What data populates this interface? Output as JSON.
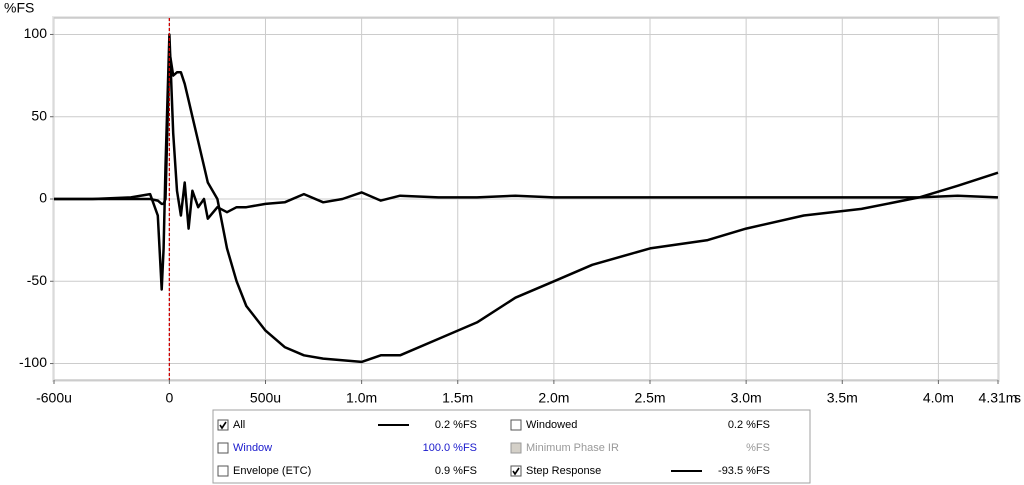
{
  "chart_data": {
    "type": "line",
    "y_label": "%FS",
    "x_unit": "s",
    "x": [
      -0.6,
      -0.4,
      -0.2,
      -0.1,
      -0.06,
      -0.04,
      -0.03,
      -0.02,
      0,
      0.02,
      0.04,
      0.06,
      0.08,
      0.1,
      0.12,
      0.15,
      0.18,
      0.2,
      0.25,
      0.3,
      0.35,
      0.4,
      0.5,
      0.6,
      0.7,
      0.8,
      0.9,
      1.0,
      1.1,
      1.2,
      1.4,
      1.6,
      1.8,
      2.0,
      2.2,
      2.5,
      2.8,
      3.0,
      3.3,
      3.6,
      3.9,
      4.1,
      4.31
    ],
    "series": [
      {
        "color": "#000000",
        "values": [
          0,
          0,
          1,
          3,
          -10,
          -55,
          -30,
          20,
          100,
          40,
          5,
          -10,
          10,
          -18,
          5,
          -5,
          0,
          -12,
          -5,
          -8,
          -5,
          -5,
          -3,
          -2,
          3,
          -2,
          0,
          4,
          -1,
          2,
          1,
          1,
          2,
          1,
          1,
          1,
          1,
          1,
          1,
          1,
          1,
          2,
          1
        ]
      },
      {
        "color": "#000000",
        "values": [
          0,
          0,
          0,
          0,
          -1,
          -3,
          -3,
          0,
          90,
          75,
          77,
          77,
          70,
          60,
          50,
          35,
          20,
          10,
          0,
          -30,
          -50,
          -65,
          -80,
          -90,
          -95,
          -97,
          -98,
          -99,
          -95,
          -95,
          -85,
          -75,
          -60,
          -50,
          -40,
          -30,
          -25,
          -18,
          -10,
          -6,
          1,
          8,
          16
        ]
      }
    ],
    "xlim": [
      -0.6,
      4.31
    ],
    "ylim": [
      -110,
      110
    ],
    "xticks": [
      {
        "value": -0.6,
        "label": "-600u"
      },
      0,
      {
        "value": 0.5,
        "label": "500u"
      },
      {
        "value": 1.0,
        "label": "1.0m"
      },
      {
        "value": 1.5,
        "label": "1.5m"
      },
      {
        "value": 2.0,
        "label": "2.0m"
      },
      {
        "value": 2.5,
        "label": "2.5m"
      },
      {
        "value": 3.0,
        "label": "3.0m"
      },
      {
        "value": 3.5,
        "label": "3.5m"
      },
      {
        "value": 4.0,
        "label": "4.0m"
      },
      {
        "value": 4.31,
        "label": "4.31m"
      }
    ],
    "yticks": [
      -100,
      -50,
      0,
      50,
      100
    ],
    "grid": true,
    "cursor_x": 0,
    "cursor_color": "#cc0000"
  },
  "legend_panel": {
    "items": [
      {
        "label": "All",
        "checked": true,
        "line": true,
        "value": "0.2 %FS",
        "color": "#000000"
      },
      {
        "label": "Windowed",
        "checked": false,
        "line": false,
        "value": "0.2 %FS",
        "color": "#000000"
      },
      {
        "label": "Window",
        "checked": false,
        "line": false,
        "value": "100.0 %FS",
        "color": "#1a1acc"
      },
      {
        "label": "Minimum Phase IR",
        "checked": false,
        "disabled": true,
        "line": false,
        "value": "%FS",
        "color": "#999999"
      },
      {
        "label": "Envelope (ETC)",
        "checked": false,
        "line": false,
        "value": "0.9 %FS",
        "color": "#000000"
      },
      {
        "label": "Step Response",
        "checked": true,
        "line": true,
        "value": "-93.5 %FS",
        "color": "#000000"
      }
    ]
  }
}
